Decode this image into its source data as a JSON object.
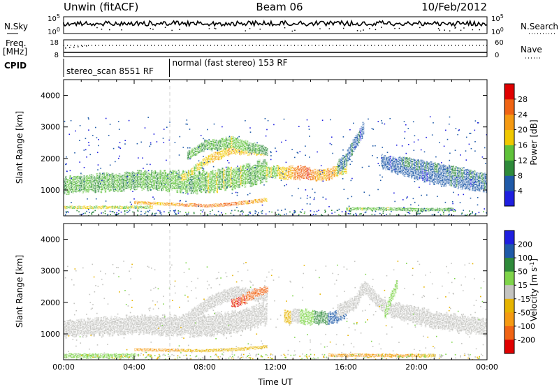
{
  "header": {
    "station": "Unwin (fitACF)",
    "beam": "Beam 06",
    "date": "10/Feb/2012"
  },
  "status_panels": {
    "nsky": {
      "left_label": "N.Sky",
      "right_label": "N.Search",
      "ticks_left": [
        "10^5",
        "10^0"
      ],
      "ticks_right": [
        "10^5",
        "10^0"
      ]
    },
    "freq": {
      "left_label_1": "Freq.",
      "left_label_2": "[MHz]",
      "right_label": "Nave",
      "ticks_left": [
        "18",
        "8"
      ],
      "ticks_right": [
        "60",
        "0"
      ]
    },
    "cpid": {
      "label": "CPID",
      "segments": [
        {
          "text": "stereo_scan 8551 RF",
          "start_hour": 0,
          "end_hour": 6
        },
        {
          "text": "normal (fast stereo) 153 RF",
          "start_hour": 6,
          "end_hour": 24
        }
      ]
    }
  },
  "colors": {
    "ground_scatter": "#c4c4c0",
    "power_scale": [
      "#1f1fe0",
      "#1f5aa8",
      "#2e8a3a",
      "#5fc23a",
      "#f0c800",
      "#f59a12",
      "#f06414",
      "#e00000"
    ],
    "velocity_scale": [
      "#e00000",
      "#f06414",
      "#f59a12",
      "#e6b400",
      "#c4c4c0",
      "#7fd44a",
      "#2e8a3a",
      "#1f5aa8",
      "#1f1fe0"
    ]
  },
  "chart_data": [
    {
      "type": "heatmap",
      "name": "power",
      "ylabel": "Slant Range [km]",
      "xlabel": "",
      "xlim_hours": [
        0,
        24
      ],
      "ylim": [
        180,
        4500
      ],
      "y_ticks": [
        "4000",
        "3000",
        "2000",
        "1000"
      ],
      "colorbar": {
        "label": "Power [dB]",
        "ticks": [
          "28",
          "24",
          "20",
          "16",
          "12",
          "8",
          "4"
        ],
        "range": [
          0,
          32
        ]
      },
      "bands": [
        {
          "x": [
            0,
            4,
            8,
            10,
            11,
            11.5
          ],
          "y": [
            1150,
            1300,
            1250,
            1400,
            1500,
            1650
          ],
          "thickness_km": [
            220,
            280,
            300,
            300,
            300,
            280
          ],
          "value": [
            20,
            22,
            28,
            26,
            24,
            22
          ]
        },
        {
          "x": [
            0,
            4,
            8,
            10,
            11.5
          ],
          "y": [
            1150,
            1300,
            1250,
            1400,
            1650
          ],
          "thickness_km": [
            500,
            550,
            650,
            650,
            650
          ],
          "value": [
            12,
            12,
            14,
            14,
            12
          ]
        },
        {
          "x": [
            6.5,
            8,
            9.5,
            11.5
          ],
          "y": [
            1300,
            1900,
            2300,
            2200
          ],
          "thickness_km": [
            200,
            250,
            300,
            260
          ],
          "value": [
            16,
            18,
            20,
            18
          ]
        },
        {
          "x": [
            7,
            8,
            9.5,
            11,
            11.5
          ],
          "y": [
            2100,
            2400,
            2500,
            2300,
            2200
          ],
          "thickness_km": [
            250,
            300,
            350,
            300,
            250
          ],
          "value": [
            12,
            12,
            14,
            12,
            12
          ]
        },
        {
          "x": [
            11,
            12.5,
            13.5,
            14,
            14.5,
            15,
            16
          ],
          "y": [
            1600,
            1550,
            1550,
            1500,
            1450,
            1500,
            1700
          ],
          "thickness_km": [
            300,
            400,
            400,
            350,
            350,
            350,
            300
          ],
          "value": [
            14,
            18,
            28,
            26,
            20,
            22,
            16
          ]
        },
        {
          "x": [
            15.5,
            16,
            16.5,
            17
          ],
          "y": [
            1700,
            2000,
            2500,
            3000
          ],
          "thickness_km": [
            400,
            400,
            400,
            400
          ],
          "value": [
            8,
            8,
            6,
            6
          ]
        },
        {
          "x": [
            18,
            19,
            21,
            23,
            24
          ],
          "y": [
            1900,
            1700,
            1500,
            1400,
            1250
          ],
          "thickness_km": [
            300,
            300,
            280,
            260,
            240
          ],
          "value": [
            12,
            12,
            10,
            10,
            10
          ]
        },
        {
          "x": [
            18,
            19,
            21,
            24
          ],
          "y": [
            1900,
            1750,
            1450,
            1200
          ],
          "thickness_km": [
            400,
            500,
            500,
            500
          ],
          "value": [
            6,
            6,
            6,
            6
          ]
        },
        {
          "x": [
            4,
            6,
            8,
            9.5,
            10.5,
            11.5
          ],
          "y": [
            600,
            550,
            500,
            550,
            620,
            700
          ],
          "thickness_km": [
            100,
            100,
            100,
            110,
            120,
            120
          ],
          "value": [
            20,
            22,
            24,
            24,
            22,
            20
          ]
        },
        {
          "x": [
            0,
            2,
            4,
            5
          ],
          "y": [
            450,
            450,
            450,
            450
          ],
          "thickness_km": [
            90,
            90,
            90,
            90
          ],
          "value": [
            16,
            16,
            16,
            16
          ]
        },
        {
          "x": [
            16,
            18,
            20,
            22
          ],
          "y": [
            400,
            400,
            380,
            380
          ],
          "thickness_km": [
            100,
            100,
            100,
            100
          ],
          "value": [
            14,
            14,
            12,
            12
          ]
        },
        {
          "x": [
            19,
            20,
            22,
            24
          ],
          "y": [
            1900,
            1800,
            1600,
            1350
          ],
          "thickness_km": [
            300,
            300,
            300,
            300
          ],
          "value": [
            8,
            8,
            8,
            8
          ]
        }
      ]
    },
    {
      "type": "heatmap",
      "name": "velocity",
      "ylabel": "Slant Range [km]",
      "xlabel": "Time UT",
      "xlim_hours": [
        0,
        24
      ],
      "ylim": [
        180,
        4500
      ],
      "x_ticks": [
        "00:00",
        "04:00",
        "08:00",
        "12:00",
        "16:00",
        "20:00",
        "00:00"
      ],
      "y_ticks": [
        "4000",
        "3000",
        "2000",
        "1000"
      ],
      "colorbar": {
        "label": "Velocity [m s^-1]",
        "ticks": [
          "200",
          "100",
          "50",
          "15",
          "-15",
          "-50",
          "-100",
          "-200"
        ]
      },
      "bands": [
        {
          "x": [
            0,
            4,
            8,
            10,
            11.5
          ],
          "y": [
            1150,
            1300,
            1250,
            1400,
            1650
          ],
          "thickness_km": [
            500,
            550,
            650,
            650,
            650
          ],
          "value": [
            0,
            0,
            0,
            0,
            0
          ]
        },
        {
          "x": [
            6.5,
            8,
            9.5,
            11.5
          ],
          "y": [
            1300,
            1900,
            2300,
            2200
          ],
          "thickness_km": [
            300,
            400,
            400,
            350
          ],
          "value": [
            0,
            0,
            0,
            0
          ]
        },
        {
          "x": [
            9.5,
            10.2,
            10.8,
            11.5
          ],
          "y": [
            1950,
            2100,
            2300,
            2400
          ],
          "thickness_km": [
            250,
            300,
            250,
            200
          ],
          "value": [
            -200,
            -200,
            -180,
            -150
          ]
        },
        {
          "x": [
            12.5,
            13.5,
            14.5,
            15.5,
            16
          ],
          "y": [
            1550,
            1550,
            1500,
            1550,
            1700
          ],
          "thickness_km": [
            400,
            450,
            400,
            350,
            300
          ],
          "value": [
            -40,
            30,
            60,
            150,
            200
          ]
        },
        {
          "x": [
            15.5,
            16.5,
            17,
            18,
            19,
            21,
            24
          ],
          "y": [
            1700,
            2000,
            2500,
            1900,
            1700,
            1450,
            1200
          ],
          "thickness_km": [
            400,
            400,
            400,
            400,
            500,
            500,
            500
          ],
          "value": [
            0,
            0,
            0,
            0,
            0,
            0,
            0
          ]
        },
        {
          "x": [
            18.2,
            18.5,
            18.9
          ],
          "y": [
            1600,
            2100,
            2600
          ],
          "thickness_km": [
            300,
            300,
            300
          ],
          "value": [
            40,
            40,
            30
          ]
        },
        {
          "x": [
            4,
            6,
            8,
            10,
            11.5
          ],
          "y": [
            500,
            480,
            470,
            520,
            600
          ],
          "thickness_km": [
            90,
            90,
            90,
            100,
            100
          ],
          "value": [
            -60,
            -60,
            -40,
            -30,
            -20
          ]
        },
        {
          "x": [
            15,
            17,
            19,
            21
          ],
          "y": [
            320,
            320,
            310,
            310
          ],
          "thickness_km": [
            100,
            100,
            100,
            100
          ],
          "value": [
            -60,
            -70,
            -60,
            -40
          ]
        },
        {
          "x": [
            0,
            2,
            4
          ],
          "y": [
            300,
            300,
            300
          ],
          "thickness_km": [
            150,
            150,
            150
          ],
          "value": [
            30,
            30,
            30
          ]
        }
      ]
    }
  ]
}
